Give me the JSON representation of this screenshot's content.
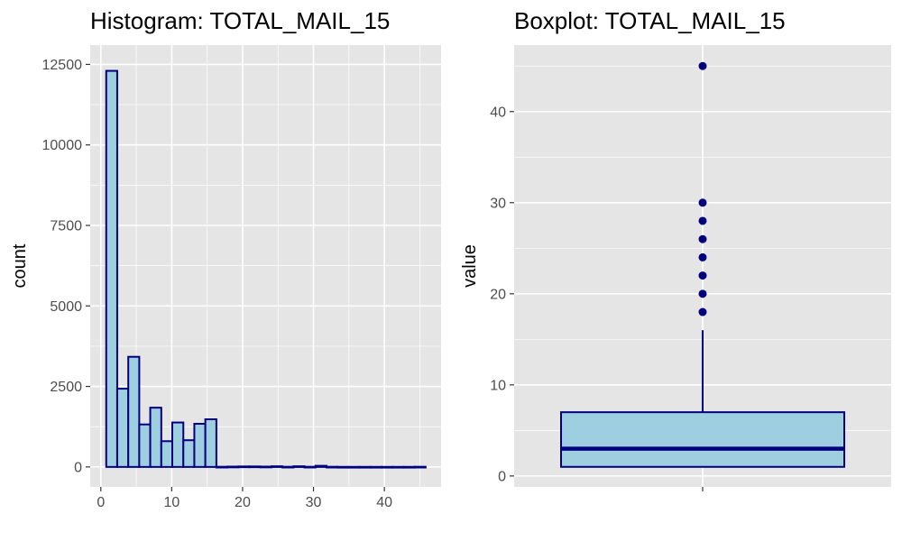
{
  "colors": {
    "panel_bg": "#e5e5e5",
    "grid_major": "#ffffff",
    "fill": "#9ecfe0",
    "outline": "#00007f",
    "tick_text": "#4d4d4d"
  },
  "chart_data": [
    {
      "type": "bar",
      "subtype": "histogram",
      "title": "Histogram: TOTAL_MAIL_15",
      "xlabel": "",
      "ylabel": "count",
      "xlim": [
        -1.5,
        48
      ],
      "ylim": [
        -620,
        13100
      ],
      "x_ticks": [
        0,
        10,
        20,
        30,
        40
      ],
      "x_tick_labels": [
        "0",
        "10",
        "20",
        "30",
        "40"
      ],
      "y_ticks": [
        0,
        2500,
        5000,
        7500,
        10000,
        12500
      ],
      "y_tick_labels": [
        "0",
        "2500",
        "5000",
        "7500",
        "10000",
        "12500"
      ],
      "bins": [
        {
          "start": 0.76,
          "end": 2.31,
          "count": 12300
        },
        {
          "start": 2.31,
          "end": 3.87,
          "count": 2430
        },
        {
          "start": 3.87,
          "end": 5.42,
          "count": 3420
        },
        {
          "start": 5.42,
          "end": 6.97,
          "count": 1320
        },
        {
          "start": 6.97,
          "end": 8.53,
          "count": 1840
        },
        {
          "start": 8.53,
          "end": 10.08,
          "count": 800
        },
        {
          "start": 10.08,
          "end": 11.64,
          "count": 1380
        },
        {
          "start": 11.64,
          "end": 13.19,
          "count": 830
        },
        {
          "start": 13.19,
          "end": 14.74,
          "count": 1340
        },
        {
          "start": 14.74,
          "end": 16.3,
          "count": 1480
        },
        {
          "start": 16.3,
          "end": 17.85,
          "count": 5
        },
        {
          "start": 17.85,
          "end": 19.41,
          "count": 10
        },
        {
          "start": 19.41,
          "end": 20.96,
          "count": 15
        },
        {
          "start": 20.96,
          "end": 22.51,
          "count": 15
        },
        {
          "start": 22.51,
          "end": 24.07,
          "count": 10
        },
        {
          "start": 24.07,
          "end": 25.62,
          "count": 20
        },
        {
          "start": 25.62,
          "end": 27.18,
          "count": 5
        },
        {
          "start": 27.18,
          "end": 28.73,
          "count": 20
        },
        {
          "start": 28.73,
          "end": 30.28,
          "count": 5
        },
        {
          "start": 30.28,
          "end": 31.84,
          "count": 35
        },
        {
          "start": 31.84,
          "end": 33.39,
          "count": 5
        },
        {
          "start": 33.39,
          "end": 34.95,
          "count": 2
        },
        {
          "start": 34.95,
          "end": 36.5,
          "count": 2
        },
        {
          "start": 36.5,
          "end": 38.05,
          "count": 2
        },
        {
          "start": 38.05,
          "end": 39.61,
          "count": 2
        },
        {
          "start": 39.61,
          "end": 41.16,
          "count": 2
        },
        {
          "start": 41.16,
          "end": 42.72,
          "count": 2
        },
        {
          "start": 42.72,
          "end": 44.27,
          "count": 2
        },
        {
          "start": 44.27,
          "end": 45.82,
          "count": 5
        }
      ],
      "grid": true
    },
    {
      "type": "boxplot",
      "title": "Boxplot: TOTAL_MAIL_15",
      "xlabel": "",
      "ylabel": "value",
      "ylim": [
        -1.2,
        47.3
      ],
      "y_ticks": [
        0,
        10,
        20,
        30,
        40
      ],
      "y_tick_labels": [
        "0",
        "10",
        "20",
        "30",
        "40"
      ],
      "box": {
        "q1": 1,
        "median": 3,
        "q3": 7,
        "whisker_low": 1,
        "whisker_high": 16
      },
      "outliers": [
        18,
        20,
        22,
        24,
        26,
        28,
        30,
        45
      ],
      "grid": true
    }
  ]
}
